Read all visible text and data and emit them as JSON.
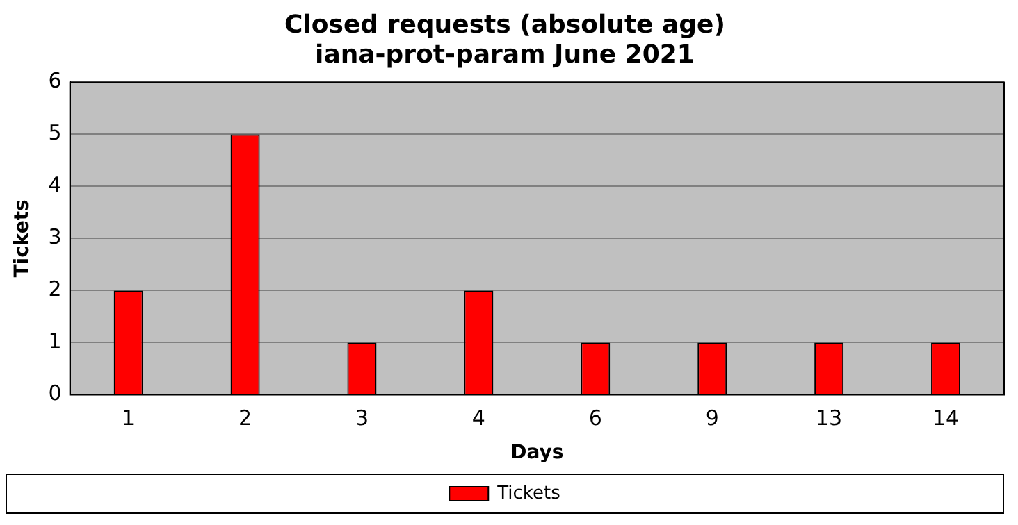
{
  "chart_data": {
    "type": "bar",
    "title": "Closed requests (absolute age)\niana-prot-param June 2021",
    "xlabel": "Days",
    "ylabel": "Tickets",
    "categories": [
      "1",
      "2",
      "3",
      "4",
      "6",
      "9",
      "13",
      "14"
    ],
    "series": [
      {
        "name": "Tickets",
        "color": "#ff0000",
        "values": [
          2,
          5,
          1,
          2,
          1,
          1,
          1,
          1
        ]
      }
    ],
    "ylim": [
      0,
      6
    ],
    "yticks": [
      0,
      1,
      2,
      3,
      4,
      5,
      6
    ],
    "grid": "y",
    "legend": "bottom"
  }
}
